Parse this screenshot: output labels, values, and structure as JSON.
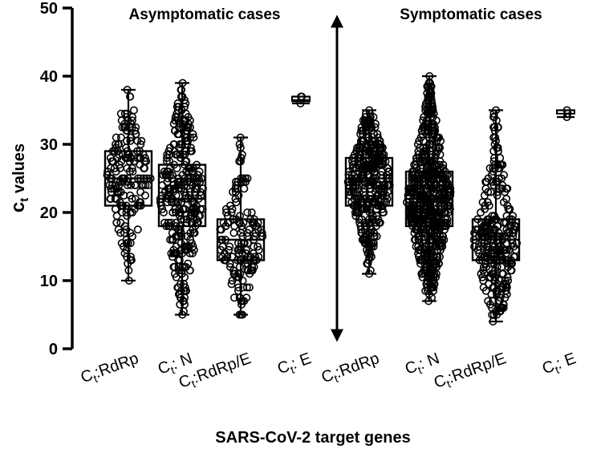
{
  "chart_data": {
    "type": "box",
    "title": "",
    "xlabel": "SARS-CoV-2 target genes",
    "ylabel_main": "c",
    "ylabel_sub": "t",
    "ylabel_rest": " values",
    "ylim": [
      0,
      50
    ],
    "yticks": [
      0,
      10,
      20,
      30,
      40,
      50
    ],
    "grid": false,
    "group_labels": [
      "Asymptomatic cases",
      "Symptomatic cases"
    ],
    "categories": [
      {
        "prefix": "C",
        "sub": "t",
        "rest": ":RdRp",
        "group": "Asymptomatic cases"
      },
      {
        "prefix": "C",
        "sub": "t",
        "rest": ": N",
        "group": "Asymptomatic cases"
      },
      {
        "prefix": "C",
        "sub": "t",
        "rest": ":RdRp/E",
        "group": "Asymptomatic cases"
      },
      {
        "prefix": "C",
        "sub": "t",
        "rest": ": E",
        "group": "Asymptomatic cases"
      },
      {
        "prefix": "C",
        "sub": "t",
        "rest": ":RdRp",
        "group": "Symptomatic cases"
      },
      {
        "prefix": "C",
        "sub": "t",
        "rest": ": N",
        "group": "Symptomatic cases"
      },
      {
        "prefix": "C",
        "sub": "t",
        "rest": ":RdRp/E",
        "group": "Symptomatic cases"
      },
      {
        "prefix": "C",
        "sub": "t",
        "rest": ": E",
        "group": "Symptomatic cases"
      }
    ],
    "boxes": [
      {
        "min": 10,
        "q1": 21,
        "median": 25,
        "q3": 29,
        "max": 38,
        "n": 180
      },
      {
        "min": 5,
        "q1": 18,
        "median": 22,
        "q3": 27,
        "max": 39,
        "n": 320
      },
      {
        "min": 5,
        "q1": 13,
        "median": 16,
        "q3": 19,
        "max": 31,
        "n": 160
      },
      {
        "min": 36,
        "q1": 36.3,
        "median": 36.5,
        "q3": 37,
        "max": 37,
        "n": 3
      },
      {
        "min": 11,
        "q1": 21,
        "median": 25,
        "q3": 28,
        "max": 35,
        "n": 380
      },
      {
        "min": 7,
        "q1": 18,
        "median": 22,
        "q3": 26,
        "max": 40,
        "n": 650
      },
      {
        "min": 4,
        "q1": 13,
        "median": 16,
        "q3": 19,
        "max": 35,
        "n": 300
      },
      {
        "min": 34,
        "q1": 34.5,
        "median": 35,
        "q3": 35,
        "max": 35,
        "n": 3
      }
    ],
    "separator": {
      "from": 1,
      "to": 49,
      "style": "double-headed arrow between groups"
    }
  }
}
